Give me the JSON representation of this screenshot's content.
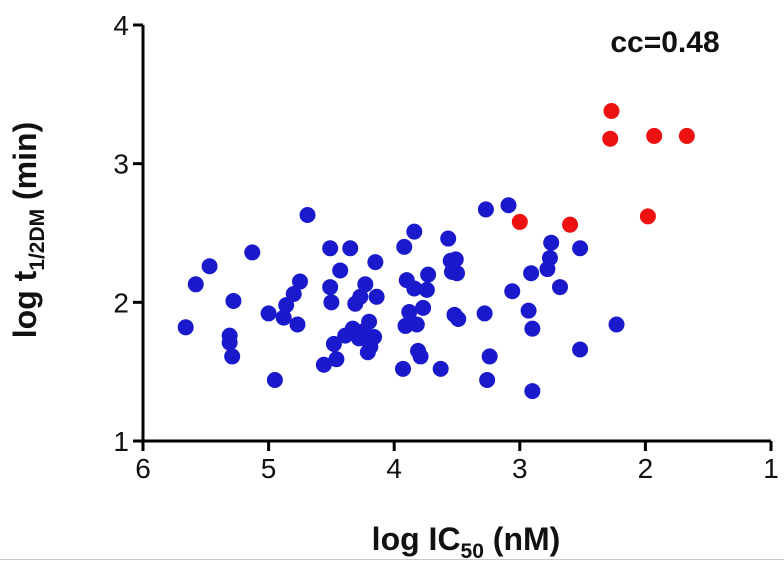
{
  "chart_data": {
    "type": "scatter",
    "xlabel": "log IC",
    "xlabel_sub": "50",
    "xlabel_suffix": " (nM)",
    "ylabel": "log t",
    "ylabel_sub": "1/2DM",
    "ylabel_suffix": " (min)",
    "annotation": "cc=0.48",
    "x_reversed": true,
    "xlim": [
      6,
      1
    ],
    "ylim": [
      1,
      4
    ],
    "x_ticks": [
      6,
      5,
      4,
      3,
      2,
      1
    ],
    "y_ticks": [
      1,
      2,
      3,
      4
    ],
    "grid": false,
    "series": [
      {
        "color": "#1a1acc",
        "points": [
          [
            5.66,
            1.82
          ],
          [
            5.58,
            2.13
          ],
          [
            5.47,
            2.26
          ],
          [
            5.31,
            1.76
          ],
          [
            5.31,
            1.71
          ],
          [
            5.28,
            2.01
          ],
          [
            5.29,
            1.61
          ],
          [
            5.13,
            2.36
          ],
          [
            5.0,
            1.92
          ],
          [
            4.95,
            1.44
          ],
          [
            4.88,
            1.89
          ],
          [
            4.86,
            1.98
          ],
          [
            4.8,
            2.06
          ],
          [
            4.77,
            1.84
          ],
          [
            4.75,
            2.15
          ],
          [
            4.69,
            2.63
          ],
          [
            4.56,
            1.55
          ],
          [
            4.51,
            2.39
          ],
          [
            4.51,
            2.11
          ],
          [
            4.5,
            2.0
          ],
          [
            4.48,
            1.7
          ],
          [
            4.46,
            1.59
          ],
          [
            4.43,
            2.23
          ],
          [
            4.39,
            1.76
          ],
          [
            4.35,
            2.39
          ],
          [
            4.33,
            1.81
          ],
          [
            4.31,
            1.99
          ],
          [
            4.28,
            1.74
          ],
          [
            4.27,
            2.04
          ],
          [
            4.25,
            1.79
          ],
          [
            4.23,
            2.13
          ],
          [
            4.21,
            1.64
          ],
          [
            4.2,
            1.86
          ],
          [
            4.19,
            1.68
          ],
          [
            4.16,
            1.75
          ],
          [
            4.15,
            2.29
          ],
          [
            4.14,
            2.04
          ],
          [
            3.93,
            1.52
          ],
          [
            3.92,
            2.4
          ],
          [
            3.91,
            1.83
          ],
          [
            3.9,
            2.16
          ],
          [
            3.88,
            1.93
          ],
          [
            3.84,
            2.51
          ],
          [
            3.84,
            2.1
          ],
          [
            3.82,
            1.84
          ],
          [
            3.81,
            1.65
          ],
          [
            3.79,
            1.61
          ],
          [
            3.77,
            1.96
          ],
          [
            3.74,
            2.09
          ],
          [
            3.73,
            2.2
          ],
          [
            3.63,
            1.52
          ],
          [
            3.57,
            2.46
          ],
          [
            3.55,
            2.3
          ],
          [
            3.54,
            2.22
          ],
          [
            3.52,
            1.91
          ],
          [
            3.51,
            2.31
          ],
          [
            3.5,
            2.21
          ],
          [
            3.49,
            1.88
          ],
          [
            3.28,
            1.92
          ],
          [
            3.27,
            2.67
          ],
          [
            3.26,
            1.44
          ],
          [
            3.24,
            1.61
          ],
          [
            3.09,
            2.7
          ],
          [
            3.06,
            2.08
          ],
          [
            2.93,
            1.94
          ],
          [
            2.91,
            2.21
          ],
          [
            2.9,
            1.81
          ],
          [
            2.9,
            1.36
          ],
          [
            2.78,
            2.24
          ],
          [
            2.76,
            2.32
          ],
          [
            2.75,
            2.43
          ],
          [
            2.68,
            2.11
          ],
          [
            2.52,
            2.39
          ],
          [
            2.52,
            1.66
          ],
          [
            2.23,
            1.84
          ]
        ]
      },
      {
        "color": "#ee1111",
        "points": [
          [
            3.0,
            2.58
          ],
          [
            2.6,
            2.56
          ],
          [
            2.27,
            3.38
          ],
          [
            2.28,
            3.18
          ],
          [
            1.93,
            3.2
          ],
          [
            1.67,
            3.2
          ],
          [
            1.98,
            2.62
          ]
        ]
      }
    ]
  }
}
